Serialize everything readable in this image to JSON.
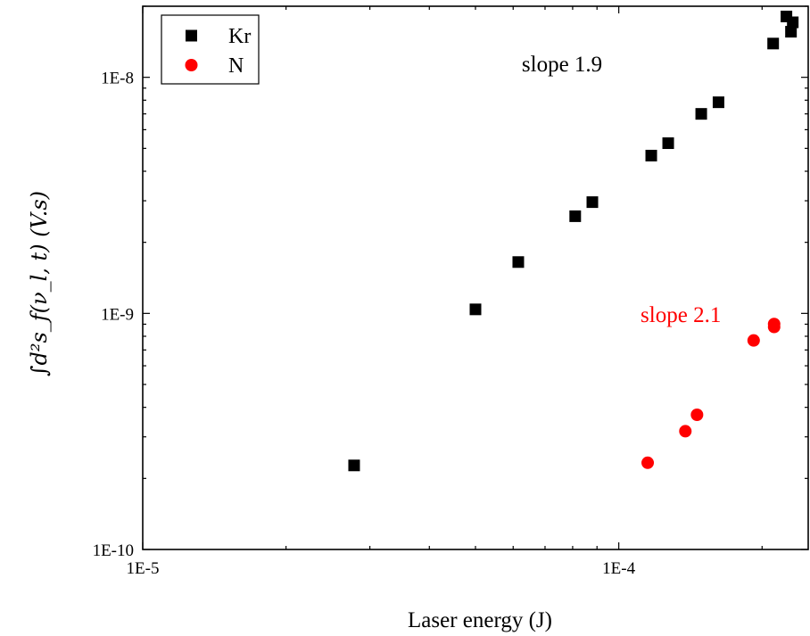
{
  "chart_data": {
    "type": "scatter",
    "xscale": "log",
    "yscale": "log",
    "xlim": [
      1e-05,
      0.00025
    ],
    "ylim": [
      1e-10,
      2e-08
    ],
    "xlabel": "Laser energy (J)",
    "ylabel": "∫d²s_f(ν_l, t) (V.s)",
    "xticks": [
      {
        "value": 1e-05,
        "label": "1E-5"
      },
      {
        "value": 0.0001,
        "label": "1E-4"
      }
    ],
    "yticks": [
      {
        "value": 1e-10,
        "label": "1E-10"
      },
      {
        "value": 1e-09,
        "label": "1E-9"
      },
      {
        "value": 1e-08,
        "label": "1E-8"
      }
    ],
    "grid": false,
    "legend": "top-left",
    "series": [
      {
        "name": "Kr",
        "marker": "square",
        "color": "#000000",
        "points": [
          {
            "x": 2.78e-05,
            "y": 2.27e-10
          },
          {
            "x": 5e-05,
            "y": 1.04e-09
          },
          {
            "x": 6.15e-05,
            "y": 1.65e-09
          },
          {
            "x": 8.1e-05,
            "y": 2.58e-09
          },
          {
            "x": 8.8e-05,
            "y": 2.96e-09
          },
          {
            "x": 0.000117,
            "y": 4.66e-09
          },
          {
            "x": 0.000127,
            "y": 5.26e-09
          },
          {
            "x": 0.000149,
            "y": 7e-09
          },
          {
            "x": 0.000162,
            "y": 7.84e-09
          },
          {
            "x": 0.000211,
            "y": 1.39e-08
          },
          {
            "x": 0.000225,
            "y": 1.81e-08
          },
          {
            "x": 0.00023,
            "y": 1.56e-08
          },
          {
            "x": 0.000232,
            "y": 1.71e-08
          }
        ]
      },
      {
        "name": "N",
        "marker": "circle",
        "color": "#ff0000",
        "points": [
          {
            "x": 0.000115,
            "y": 2.33e-10
          },
          {
            "x": 0.000138,
            "y": 3.17e-10
          },
          {
            "x": 0.000146,
            "y": 3.72e-10
          },
          {
            "x": 0.000192,
            "y": 7.68e-10
          },
          {
            "x": 0.000212,
            "y": 8.76e-10
          },
          {
            "x": 0.000212,
            "y": 9.02e-10
          }
        ]
      }
    ],
    "annotations": [
      {
        "text": "slope 1.9",
        "color": "#000000",
        "x": 7.6e-05,
        "y": 1.06e-08
      },
      {
        "text": "slope 2.1",
        "color": "#ff0000",
        "x": 0.000135,
        "y": 9.2e-10
      }
    ]
  }
}
